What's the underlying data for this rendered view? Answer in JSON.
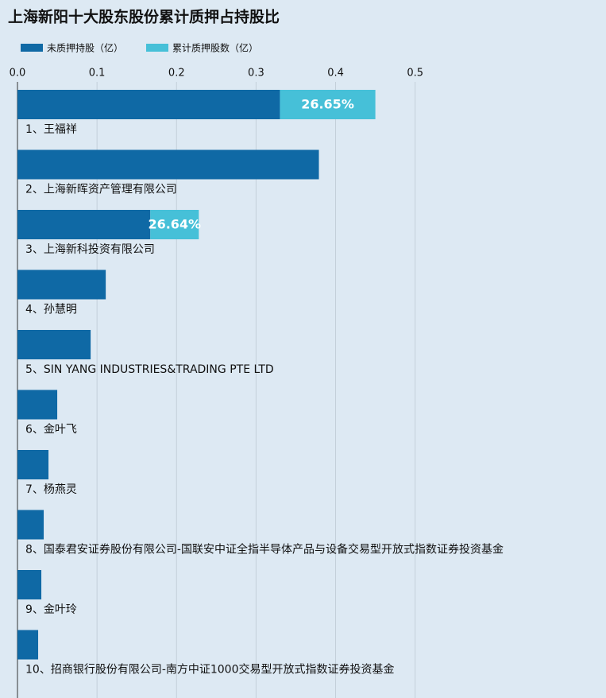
{
  "chart_data": {
    "type": "hbar-stacked",
    "title": "上海新阳十大股东股份累计质押占持股比",
    "categories": [
      "1、王福祥",
      "2、上海新晖资产管理有限公司",
      "3、上海新科投资有限公司",
      "4、孙慧明",
      "5、SIN YANG INDUSTRIES&TRADING PTE LTD",
      "6、金叶飞",
      "7、杨燕灵",
      "8、国泰君安证券股份有限公司-国联安中证全指半导体产品与设备交易型开放式指数证券投资基金",
      "9、金叶玲",
      "10、招商银行股份有限公司-南方中证1000交易型开放式指数证券投资基金"
    ],
    "series": [
      {
        "name": "未质押持股（亿）",
        "color": "#0f69a5",
        "values": [
          0.33,
          0.379,
          0.167,
          0.111,
          0.092,
          0.05,
          0.039,
          0.033,
          0.03,
          0.026
        ]
      },
      {
        "name": "累计质押股数（亿）",
        "color": "#46c0d8",
        "values": [
          0.12,
          0,
          0.061,
          0,
          0,
          0,
          0,
          0,
          0,
          0
        ]
      }
    ],
    "ratio_labels": [
      "26.65%",
      null,
      "26.64%",
      null,
      null,
      null,
      null,
      null,
      null,
      null
    ],
    "xlim": [
      0,
      0.74
    ],
    "xticks": [
      {
        "value": 0,
        "label": "0.0"
      },
      0.1,
      0.2,
      0.3,
      0.4,
      0.5
    ],
    "grid": true
  }
}
